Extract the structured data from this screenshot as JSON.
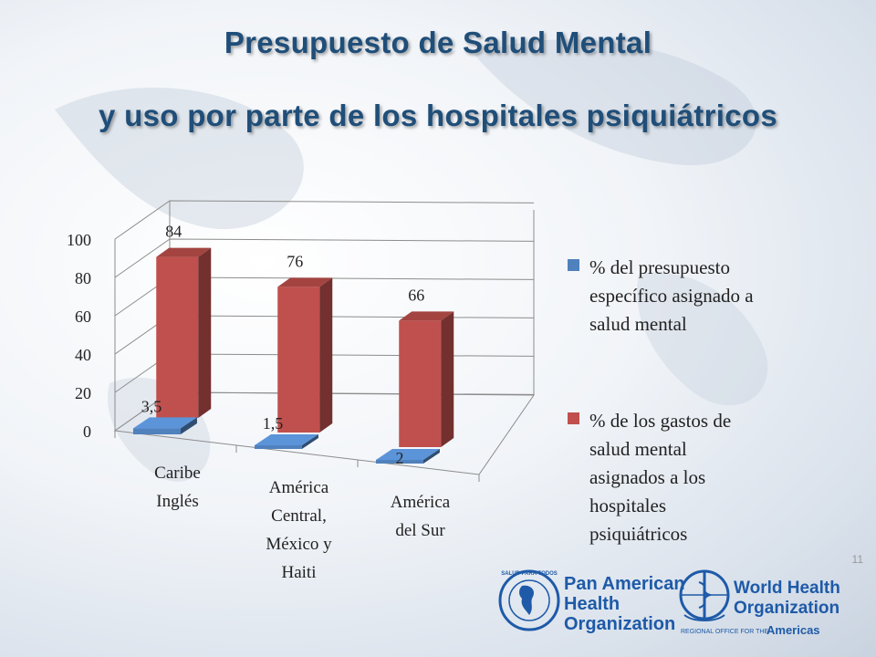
{
  "slide": {
    "title_line1": "Presupuesto de Salud Mental",
    "title_line2": "y uso por parte de los hospitales psiquiátricos",
    "page_number": "11"
  },
  "chart_data": {
    "type": "bar",
    "categories": [
      "Caribe Inglés",
      "América Central, México y Haiti",
      "América del Sur"
    ],
    "category_lines": [
      [
        "Caribe",
        "Inglés"
      ],
      [
        "América",
        "Central,",
        "México y",
        "Haiti"
      ],
      [
        "América",
        "del Sur"
      ]
    ],
    "series": [
      {
        "name": "% del presupuesto específico asignado a salud mental",
        "values": [
          3.5,
          1.5,
          2
        ],
        "labels": [
          "3,5",
          "1,5",
          "2"
        ],
        "color": "#4f81bd"
      },
      {
        "name": "% de los gastos de salud mental asignados a los hospitales psiquiátricos",
        "values": [
          84,
          76,
          66
        ],
        "labels": [
          "84",
          "76",
          "66"
        ],
        "color": "#c0504d"
      }
    ],
    "yticks": [
      0,
      20,
      40,
      60,
      80,
      100
    ],
    "ylim": [
      0,
      100
    ],
    "legend_position": "right",
    "style": "3d-clustered-column"
  },
  "legend": {
    "item1_lines": [
      "% del presupuesto",
      "específico asignado a",
      "salud mental"
    ],
    "item2_lines": [
      "% de los gastos de",
      "salud mental",
      "asignados a los",
      "hospitales",
      "psiquiátricos"
    ]
  },
  "logos": {
    "paho_lines": [
      "Pan American",
      "Health",
      "Organization"
    ],
    "paho_seal_text": "SALUD PARA TODOS",
    "who_lines": [
      "World Health",
      "Organization"
    ],
    "who_sub_prefix": "REGIONAL OFFICE FOR THE",
    "who_sub_region": "Americas",
    "brand_color": "#1e5aa8"
  }
}
